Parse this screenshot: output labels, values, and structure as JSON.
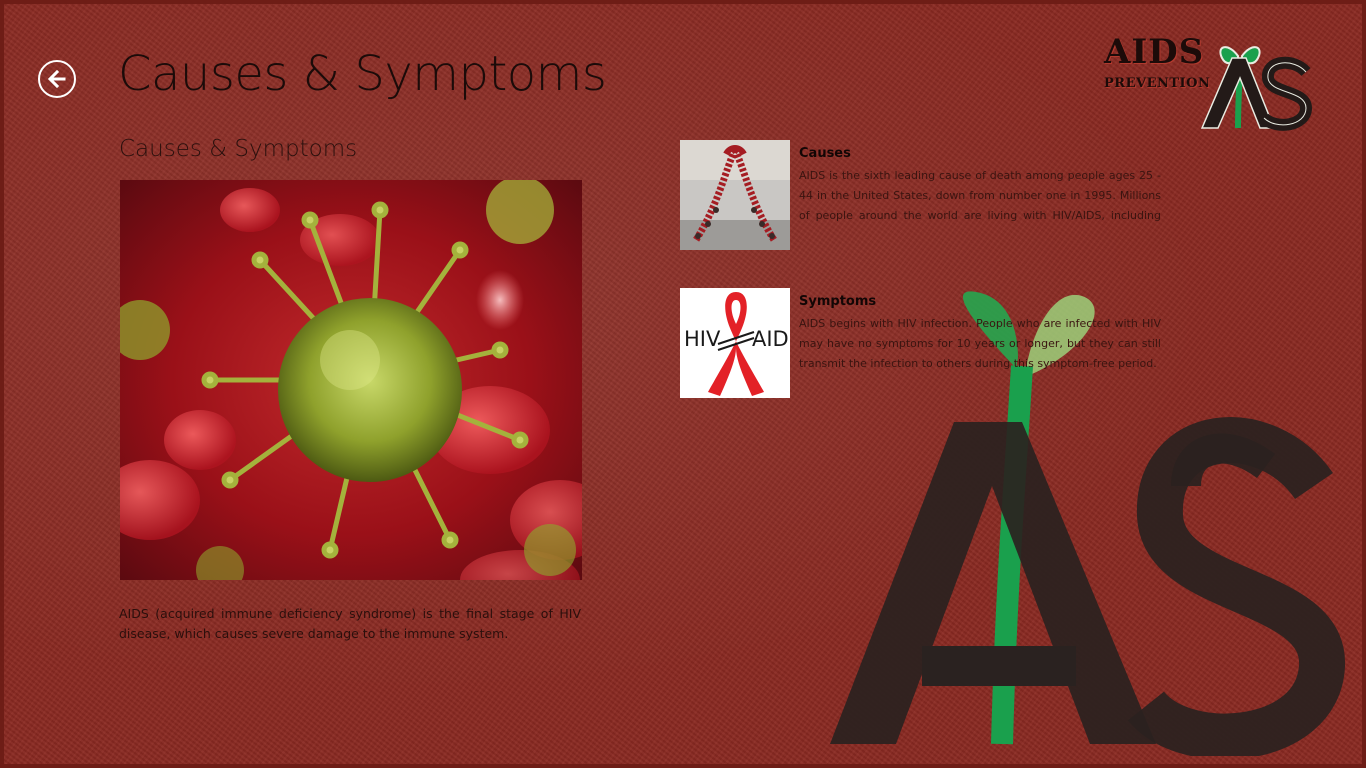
{
  "header": {
    "title": "Causes & Symptoms",
    "back_icon": "back-arrow-icon"
  },
  "branding": {
    "logo_word": "AIDS",
    "logo_sub": "PREVENTION",
    "logo_mark": "ADS",
    "colors": {
      "green": "#1aa04d",
      "dark": "#231a18"
    }
  },
  "main": {
    "section_heading": "Causes & Symptoms",
    "image_subject": "virus-cell-image",
    "description": "AIDS (acquired immune deficiency syndrome) is the final stage of HIV disease, which causes severe damage to the immune system."
  },
  "items": [
    {
      "title": "Causes",
      "text": "AIDS is the sixth leading cause of death among people ages 25 - 44 in the United States, down from number one in 1995. Millions of people around the world are living with HIV/AIDS, including children",
      "thumb": "people-ribbon-photo"
    },
    {
      "title": "Symptoms",
      "text": "AIDS begins with HIV infection. People who are infected with HIV may have no symptoms for 10 years or longer, but they can still transmit the infection to others during this symptom-free period.",
      "thumb": "hiv-aids-ribbon-logo",
      "thumb_left": "HIV",
      "thumb_right": "AID"
    }
  ],
  "colors": {
    "background": "#8b2a22",
    "ribbon_red": "#e32127"
  }
}
